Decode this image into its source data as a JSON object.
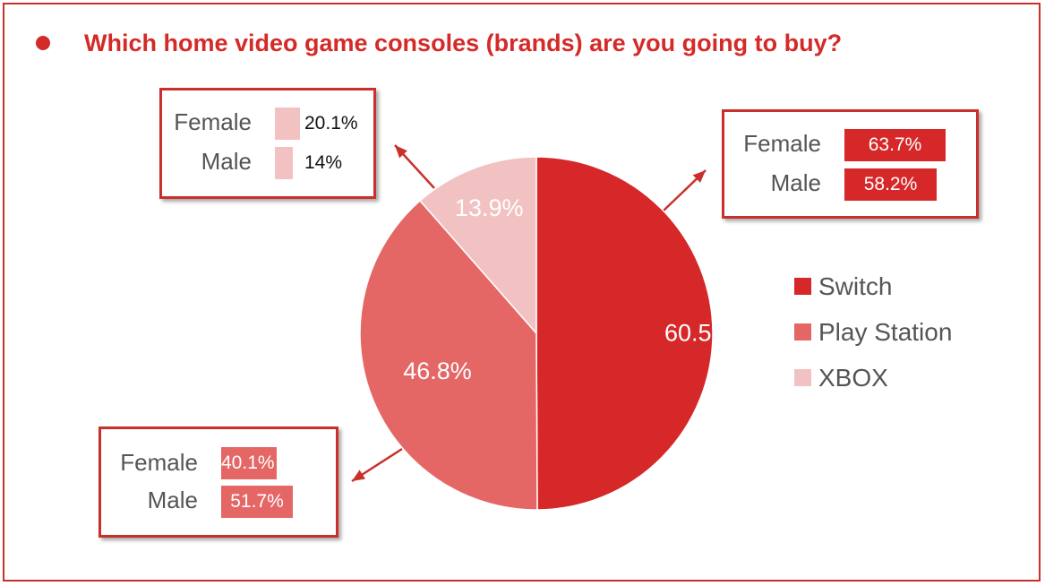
{
  "title": "Which home video game consoles (brands) are you going to buy?",
  "colors": {
    "accent": "#d42a28",
    "switch": "#d62828",
    "playstation": "#e46766",
    "xbox": "#f2c2c2",
    "border": "#c9302c"
  },
  "chart_data": {
    "type": "pie",
    "title": "Which home video game consoles (brands) are you going to buy?",
    "slices": [
      {
        "name": "Switch",
        "value": 60.5,
        "label": "60.5%"
      },
      {
        "name": "Play Station",
        "value": 46.8,
        "label": "46.8%"
      },
      {
        "name": "XBOX",
        "value": 13.9,
        "label": "13.9%"
      }
    ],
    "legend": [
      "Switch",
      "Play Station",
      "XBOX"
    ],
    "legend_position": "right",
    "breakdowns": {
      "switch": {
        "female_label": "Female",
        "female_value": "63.7%",
        "male_label": "Male",
        "male_value": "58.2%"
      },
      "playstation": {
        "female_label": "Female",
        "female_value": "40.1%",
        "male_label": "Male",
        "male_value": "51.7%"
      },
      "xbox": {
        "female_label": "Female",
        "female_value": "20.1%",
        "male_label": "Male",
        "male_value": "14%"
      }
    }
  }
}
